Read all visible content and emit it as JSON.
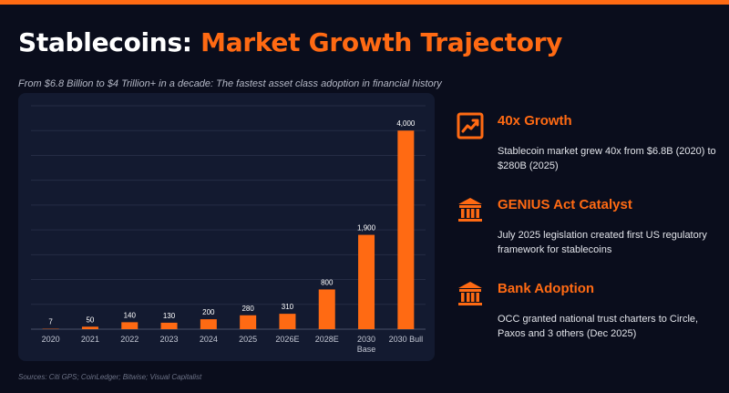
{
  "header": {
    "title_prefix": "Stablecoins:",
    "title_accent": "Market Growth Trajectory",
    "subtitle": "From $6.8 Billion to $4 Trillion+ in a decade: The fastest asset class adoption in financial history"
  },
  "colors": {
    "accent": "#ff6a13",
    "background": "#0a0d1c",
    "card": "#131a30"
  },
  "chart_data": {
    "type": "bar",
    "categories": [
      "2020",
      "2021",
      "2022",
      "2023",
      "2024",
      "2025",
      "2026E",
      "2028E",
      "2030 Base",
      "2030 Bull"
    ],
    "category_lines": [
      [
        "2020"
      ],
      [
        "2021"
      ],
      [
        "2022"
      ],
      [
        "2023"
      ],
      [
        "2024"
      ],
      [
        "2025"
      ],
      [
        "2026E"
      ],
      [
        "2028E"
      ],
      [
        "2030",
        "Base"
      ],
      [
        "2030 Bull"
      ]
    ],
    "values": [
      7,
      50,
      140,
      130,
      200,
      280,
      310,
      800,
      1900,
      4000
    ],
    "value_labels": [
      "7",
      "50",
      "140",
      "130",
      "200",
      "280",
      "310",
      "800",
      "1,900",
      "4,000"
    ],
    "title": "",
    "xlabel": "",
    "ylabel": "",
    "ylim": [
      0,
      4500
    ],
    "grid": true,
    "legend": "none",
    "bar_color": "#ff6a13"
  },
  "features": [
    {
      "icon": "trend-chart-icon",
      "title": "40x Growth",
      "description": "Stablecoin market grew 40x from $6.8B (2020) to $280B (2025)"
    },
    {
      "icon": "bank-icon",
      "title": "GENIUS Act Catalyst",
      "description": "July 2025 legislation created first US regulatory framework for stablecoins"
    },
    {
      "icon": "bank-icon",
      "title": "Bank Adoption",
      "description": "OCC granted national trust charters to Circle, Paxos and 3 others (Dec 2025)"
    }
  ],
  "footer": {
    "sources": "Sources: Citi GPS; CoinLedger; Bitwise; Visual Capitalist"
  }
}
